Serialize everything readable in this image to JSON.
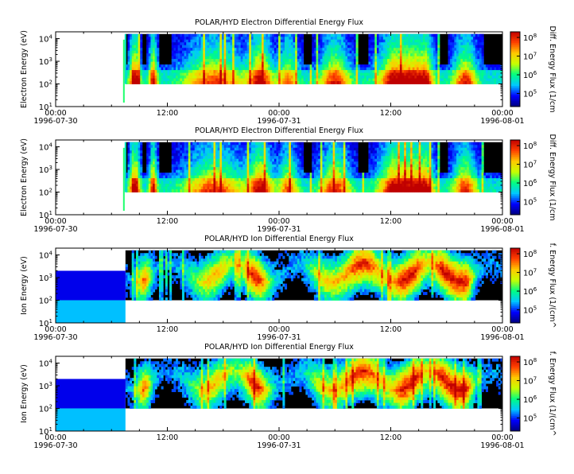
{
  "chart_data": [
    {
      "type": "heatmap",
      "title": "POLAR/HYD  Electron Differential Energy Flux",
      "ylabel": "Electron Energy (eV)",
      "colorbar_label": "Diff. Energy Flux (1/cm",
      "y_scale": "log",
      "ylim": [
        10,
        20000
      ],
      "y_ticks": [
        {
          "value": 10,
          "exp": "1"
        },
        {
          "value": 100,
          "exp": "2"
        },
        {
          "value": 1000,
          "exp": "3"
        },
        {
          "value": 10000,
          "exp": "4"
        }
      ],
      "colorbar_ticks": [
        {
          "value": 100000,
          "exp": "5"
        },
        {
          "value": 1000000,
          "exp": "6"
        },
        {
          "value": 10000000,
          "exp": "7"
        },
        {
          "value": 100000000,
          "exp": "8"
        }
      ],
      "x_ticks": [
        {
          "time": "00:00",
          "date": "1996-07-30"
        },
        {
          "time": "12:00",
          "date": ""
        },
        {
          "time": "00:00",
          "date": "1996-07-31"
        },
        {
          "time": "12:00",
          "date": ""
        },
        {
          "time": "00:00",
          "date": "1996-08-01"
        }
      ],
      "species": "electron",
      "data_start_hour": 7.5,
      "energy_range": [
        100,
        16000
      ]
    },
    {
      "type": "heatmap",
      "title": "POLAR/HYD  Electron Differential Energy Flux",
      "ylabel": "Electron Energy (eV)",
      "colorbar_label": "Diff. Energy Flux (1/cm",
      "y_scale": "log",
      "ylim": [
        10,
        20000
      ],
      "y_ticks": [
        {
          "value": 10,
          "exp": "1"
        },
        {
          "value": 100,
          "exp": "2"
        },
        {
          "value": 1000,
          "exp": "3"
        },
        {
          "value": 10000,
          "exp": "4"
        }
      ],
      "colorbar_ticks": [
        {
          "value": 100000,
          "exp": "5"
        },
        {
          "value": 1000000,
          "exp": "6"
        },
        {
          "value": 10000000,
          "exp": "7"
        },
        {
          "value": 100000000,
          "exp": "8"
        }
      ],
      "x_ticks": [
        {
          "time": "00:00",
          "date": "1996-07-30"
        },
        {
          "time": "12:00",
          "date": ""
        },
        {
          "time": "00:00",
          "date": "1996-07-31"
        },
        {
          "time": "12:00",
          "date": ""
        },
        {
          "time": "00:00",
          "date": "1996-08-01"
        }
      ],
      "species": "electron",
      "data_start_hour": 7.5,
      "energy_range": [
        100,
        16000
      ]
    },
    {
      "type": "heatmap",
      "title": "POLAR/HYD  Ion Differential Energy Flux",
      "ylabel": "Ion Energy (eV)",
      "colorbar_label": "f. Energy Flux (1/(cm^",
      "y_scale": "log",
      "ylim": [
        10,
        20000
      ],
      "y_ticks": [
        {
          "value": 10,
          "exp": "1"
        },
        {
          "value": 100,
          "exp": "2"
        },
        {
          "value": 1000,
          "exp": "3"
        },
        {
          "value": 10000,
          "exp": "4"
        }
      ],
      "colorbar_ticks": [
        {
          "value": 100000,
          "exp": "5"
        },
        {
          "value": 1000000,
          "exp": "6"
        },
        {
          "value": 10000000,
          "exp": "7"
        },
        {
          "value": 100000000,
          "exp": "8"
        }
      ],
      "x_ticks": [
        {
          "time": "00:00",
          "date": "1996-07-30"
        },
        {
          "time": "12:00",
          "date": ""
        },
        {
          "time": "00:00",
          "date": "1996-07-31"
        },
        {
          "time": "12:00",
          "date": ""
        },
        {
          "time": "00:00",
          "date": "1996-08-01"
        }
      ],
      "species": "ion",
      "data_start_hour": 7.5,
      "energy_range": [
        100,
        16000
      ]
    },
    {
      "type": "heatmap",
      "title": "POLAR/HYD  Ion Differential Energy Flux",
      "ylabel": "Ion Energy (eV)",
      "colorbar_label": "f. Energy Flux (1/(cm^",
      "y_scale": "log",
      "ylim": [
        10,
        20000
      ],
      "y_ticks": [
        {
          "value": 10,
          "exp": "1"
        },
        {
          "value": 100,
          "exp": "2"
        },
        {
          "value": 1000,
          "exp": "3"
        },
        {
          "value": 10000,
          "exp": "4"
        }
      ],
      "colorbar_ticks": [
        {
          "value": 100000,
          "exp": "5"
        },
        {
          "value": 1000000,
          "exp": "6"
        },
        {
          "value": 10000000,
          "exp": "7"
        },
        {
          "value": 100000000,
          "exp": "8"
        }
      ],
      "x_ticks": [
        {
          "time": "00:00",
          "date": "1996-07-30"
        },
        {
          "time": "12:00",
          "date": ""
        },
        {
          "time": "00:00",
          "date": "1996-07-31"
        },
        {
          "time": "12:00",
          "date": ""
        },
        {
          "time": "00:00",
          "date": "1996-08-01"
        }
      ],
      "species": "ion",
      "data_start_hour": 7.5,
      "energy_range": [
        100,
        16000
      ]
    }
  ],
  "colors": {
    "background_fill": "#000000",
    "axis": "#000000",
    "colormap": [
      "#00007f",
      "#0000ff",
      "#00c8ff",
      "#00ff80",
      "#c8ff00",
      "#ffc800",
      "#ff4000",
      "#c00000"
    ]
  }
}
